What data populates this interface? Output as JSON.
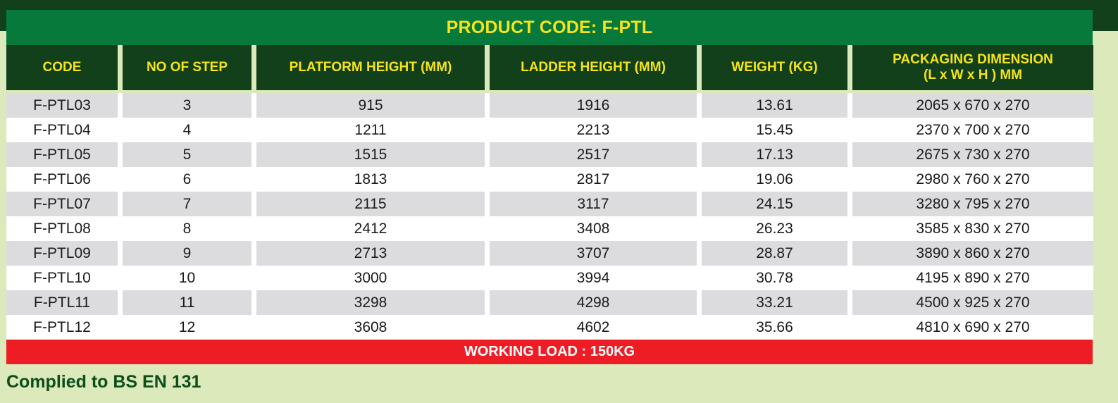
{
  "title": "PRODUCT CODE: F-PTL",
  "headers": [
    {
      "line1": "CODE",
      "line2": ""
    },
    {
      "line1": "NO OF STEP",
      "line2": ""
    },
    {
      "line1": "PLATFORM HEIGHT (MM)",
      "line2": ""
    },
    {
      "line1": "LADDER HEIGHT (MM)",
      "line2": ""
    },
    {
      "line1": "WEIGHT (KG)",
      "line2": ""
    },
    {
      "line1": "PACKAGING DIMENSION",
      "line2": "(L x W x H ) MM"
    }
  ],
  "rows": [
    [
      "F-PTL03",
      "3",
      "915",
      "1916",
      "13.61",
      "2065 x 670 x 270"
    ],
    [
      "F-PTL04",
      "4",
      "1211",
      "2213",
      "15.45",
      "2370 x 700 x 270"
    ],
    [
      "F-PTL05",
      "5",
      "1515",
      "2517",
      "17.13",
      "2675 x 730 x 270"
    ],
    [
      "F-PTL06",
      "6",
      "1813",
      "2817",
      "19.06",
      "2980 x 760 x 270"
    ],
    [
      "F-PTL07",
      "7",
      "2115",
      "3117",
      "24.15",
      "3280 x 795 x 270"
    ],
    [
      "F-PTL08",
      "8",
      "2412",
      "3408",
      "26.23",
      "3585 x 830 x 270"
    ],
    [
      "F-PTL09",
      "9",
      "2713",
      "3707",
      "28.87",
      "3890 x 860 x 270"
    ],
    [
      "F-PTL10",
      "10",
      "3000",
      "3994",
      "30.78",
      "4195 x 890 x 270"
    ],
    [
      "F-PTL11",
      "11",
      "3298",
      "4298",
      "33.21",
      "4500 x 925 x 270"
    ],
    [
      "F-PTL12",
      "12",
      "3608",
      "4602",
      "35.66",
      "4810 x 690 x 270"
    ]
  ],
  "footer": "WORKING LOAD : 150KG",
  "compliance": "Complied to BS EN 131",
  "colors": {
    "dark_green": "#11401a",
    "green": "#077a3b",
    "yellow": "#f6e31c",
    "red": "#ee1c25",
    "stripe_gray": "#dcdcdf",
    "background": "#dbe9bb"
  }
}
